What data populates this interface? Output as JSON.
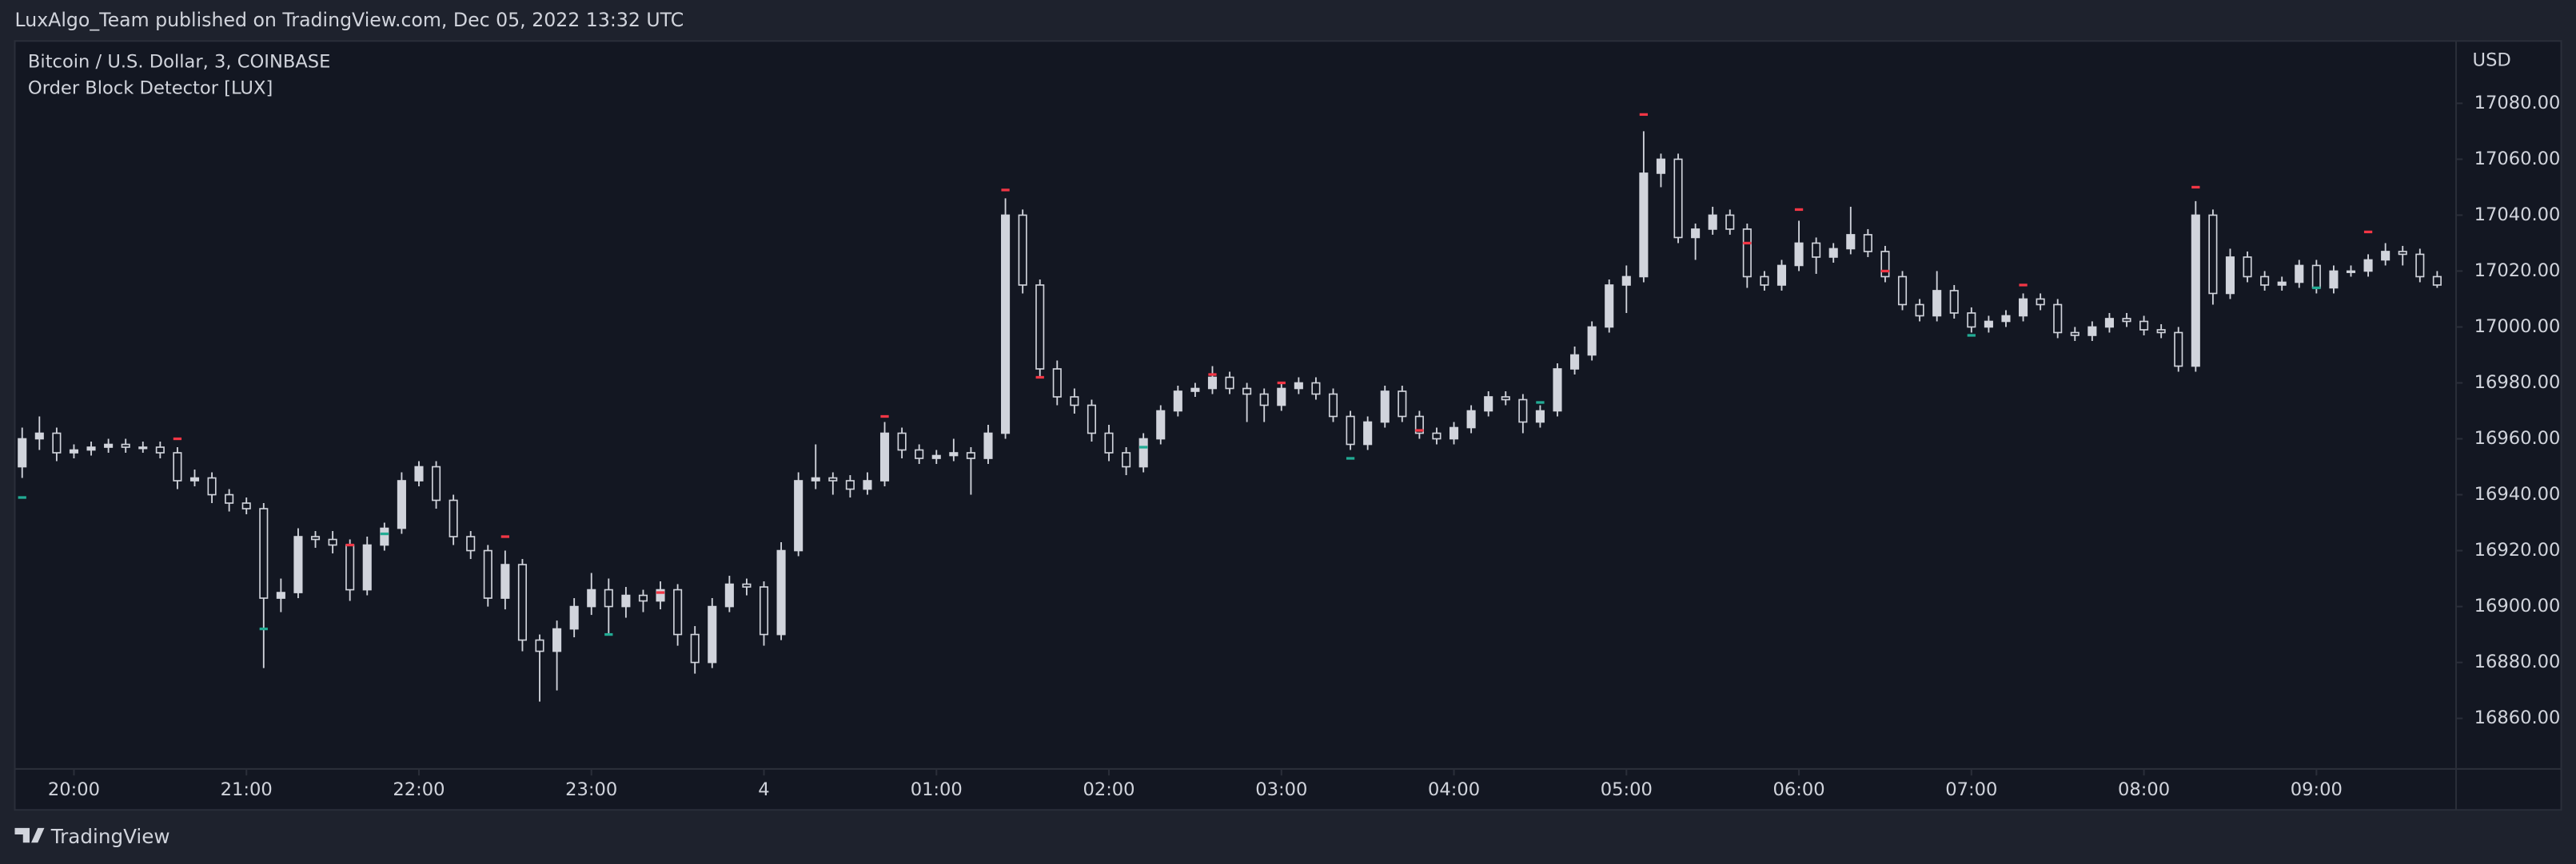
{
  "header": {
    "publisher": "LuxAlgo_Team published on TradingView.com, Dec 05, 2022 13:32 UTC"
  },
  "footer": {
    "brand": "TradingView"
  },
  "chart_data": {
    "type": "candlestick",
    "title": "Bitcoin / U.S. Dollar, 3, COINBASE",
    "subtitle": "Order Block Detector [LUX]",
    "y_axis_label": "USD",
    "up_color": "#d1d4dc",
    "down_color": "#131722",
    "grid": false,
    "xlim": [
      -0.333,
      141.095
    ],
    "ylim": [
      16842.5,
      17102.3
    ],
    "xticks": [
      {
        "value": 3,
        "label": "20:00"
      },
      {
        "value": 13,
        "label": "21:00"
      },
      {
        "value": 23,
        "label": "22:00"
      },
      {
        "value": 33,
        "label": "23:00"
      },
      {
        "value": 43,
        "label": "4"
      },
      {
        "value": 53,
        "label": "01:00"
      },
      {
        "value": 63,
        "label": "02:00"
      },
      {
        "value": 73,
        "label": "03:00"
      },
      {
        "value": 83,
        "label": "04:00"
      },
      {
        "value": 93,
        "label": "05:00"
      },
      {
        "value": 103,
        "label": "06:00"
      },
      {
        "value": 113,
        "label": "07:00"
      },
      {
        "value": 123,
        "label": "08:00"
      },
      {
        "value": 133,
        "label": "09:00"
      }
    ],
    "yticks": [
      {
        "value": 16860,
        "label": "16860.00"
      },
      {
        "value": 16880,
        "label": "16880.00"
      },
      {
        "value": 16900,
        "label": "16900.00"
      },
      {
        "value": 16920,
        "label": "16920.00"
      },
      {
        "value": 16940,
        "label": "16940.00"
      },
      {
        "value": 16960,
        "label": "16960.00"
      },
      {
        "value": 16980,
        "label": "16980.00"
      },
      {
        "value": 17000,
        "label": "17000.00"
      },
      {
        "value": 17020,
        "label": "17020.00"
      },
      {
        "value": 17040,
        "label": "17040.00"
      },
      {
        "value": 17060,
        "label": "17060.00"
      },
      {
        "value": 17080,
        "label": "17080.00"
      }
    ],
    "ohlc": [
      [
        16950,
        16964,
        16946,
        16960
      ],
      [
        16960,
        16968,
        16956,
        16962
      ],
      [
        16962,
        16964,
        16952,
        16955
      ],
      [
        16955,
        16958,
        16953,
        16956
      ],
      [
        16956,
        16959,
        16954,
        16957
      ],
      [
        16957,
        16960,
        16955,
        16958
      ],
      [
        16958,
        16960,
        16955,
        16957
      ],
      [
        16957,
        16959,
        16955,
        16957
      ],
      [
        16957,
        16959,
        16953,
        16955
      ],
      [
        16955,
        16957,
        16942,
        16945
      ],
      [
        16945,
        16949,
        16943,
        16946
      ],
      [
        16946,
        16948,
        16937,
        16940
      ],
      [
        16940,
        16942,
        16934,
        16937
      ],
      [
        16937,
        16939,
        16933,
        16935
      ],
      [
        16935,
        16937,
        16878,
        16903
      ],
      [
        16903,
        16910,
        16898,
        16905
      ],
      [
        16905,
        16928,
        16903,
        16925
      ],
      [
        16925,
        16927,
        16921,
        16924
      ],
      [
        16924,
        16927,
        16919,
        16922
      ],
      [
        16922,
        16924,
        16902,
        16906
      ],
      [
        16906,
        16925,
        16904,
        16922
      ],
      [
        16922,
        16930,
        16920,
        16928
      ],
      [
        16928,
        16948,
        16926,
        16945
      ],
      [
        16945,
        16952,
        16943,
        16950
      ],
      [
        16950,
        16952,
        16935,
        16938
      ],
      [
        16938,
        16940,
        16922,
        16925
      ],
      [
        16925,
        16927,
        16917,
        16920
      ],
      [
        16920,
        16922,
        16900,
        16903
      ],
      [
        16903,
        16920,
        16899,
        16915
      ],
      [
        16915,
        16917,
        16884,
        16888
      ],
      [
        16888,
        16890,
        16866,
        16884
      ],
      [
        16884,
        16895,
        16870,
        16892
      ],
      [
        16892,
        16903,
        16889,
        16900
      ],
      [
        16900,
        16912,
        16897,
        16906
      ],
      [
        16906,
        16910,
        16890,
        16900
      ],
      [
        16900,
        16907,
        16896,
        16904
      ],
      [
        16904,
        16906,
        16898,
        16902
      ],
      [
        16902,
        16909,
        16899,
        16906
      ],
      [
        16906,
        16908,
        16886,
        16890
      ],
      [
        16890,
        16893,
        16876,
        16880
      ],
      [
        16880,
        16903,
        16878,
        16900
      ],
      [
        16900,
        16911,
        16898,
        16908
      ],
      [
        16908,
        16910,
        16904,
        16907
      ],
      [
        16907,
        16909,
        16886,
        16890
      ],
      [
        16890,
        16923,
        16888,
        16920
      ],
      [
        16920,
        16948,
        16918,
        16945
      ],
      [
        16945,
        16958,
        16942,
        16946
      ],
      [
        16946,
        16948,
        16940,
        16945
      ],
      [
        16945,
        16947,
        16939,
        16942
      ],
      [
        16942,
        16948,
        16940,
        16945
      ],
      [
        16945,
        16966,
        16943,
        16962
      ],
      [
        16962,
        16964,
        16953,
        16956
      ],
      [
        16956,
        16958,
        16951,
        16953
      ],
      [
        16953,
        16956,
        16951,
        16954
      ],
      [
        16954,
        16960,
        16952,
        16955
      ],
      [
        16955,
        16957,
        16940,
        16953
      ],
      [
        16953,
        16965,
        16951,
        16962
      ],
      [
        16962,
        17046,
        16960,
        17040
      ],
      [
        17040,
        17042,
        17012,
        17015
      ],
      [
        17015,
        17017,
        16982,
        16985
      ],
      [
        16985,
        16988,
        16972,
        16975
      ],
      [
        16975,
        16978,
        16969,
        16972
      ],
      [
        16972,
        16974,
        16959,
        16962
      ],
      [
        16962,
        16965,
        16952,
        16955
      ],
      [
        16955,
        16957,
        16947,
        16950
      ],
      [
        16950,
        16962,
        16948,
        16960
      ],
      [
        16960,
        16972,
        16958,
        16970
      ],
      [
        16970,
        16979,
        16968,
        16977
      ],
      [
        16977,
        16980,
        16975,
        16978
      ],
      [
        16978,
        16986,
        16976,
        16982
      ],
      [
        16982,
        16984,
        16976,
        16978
      ],
      [
        16978,
        16980,
        16966,
        16976
      ],
      [
        16976,
        16978,
        16966,
        16972
      ],
      [
        16972,
        16980,
        16970,
        16978
      ],
      [
        16978,
        16982,
        16976,
        16980
      ],
      [
        16980,
        16982,
        16974,
        16976
      ],
      [
        16976,
        16978,
        16966,
        16968
      ],
      [
        16968,
        16970,
        16956,
        16958
      ],
      [
        16958,
        16968,
        16956,
        16966
      ],
      [
        16966,
        16979,
        16964,
        16977
      ],
      [
        16977,
        16979,
        16966,
        16968
      ],
      [
        16968,
        16970,
        16960,
        16962
      ],
      [
        16962,
        16964,
        16958,
        16960
      ],
      [
        16960,
        16966,
        16958,
        16964
      ],
      [
        16964,
        16972,
        16962,
        16970
      ],
      [
        16970,
        16977,
        16968,
        16975
      ],
      [
        16975,
        16977,
        16972,
        16974
      ],
      [
        16974,
        16976,
        16962,
        16966
      ],
      [
        16966,
        16972,
        16964,
        16970
      ],
      [
        16970,
        16987,
        16968,
        16985
      ],
      [
        16985,
        16993,
        16983,
        16990
      ],
      [
        16990,
        17002,
        16988,
        17000
      ],
      [
        17000,
        17017,
        16998,
        17015
      ],
      [
        17015,
        17022,
        17005,
        17018
      ],
      [
        17018,
        17070,
        17016,
        17055
      ],
      [
        17055,
        17062,
        17050,
        17060
      ],
      [
        17060,
        17062,
        17030,
        17032
      ],
      [
        17032,
        17037,
        17024,
        17035
      ],
      [
        17035,
        17043,
        17033,
        17040
      ],
      [
        17040,
        17042,
        17033,
        17035
      ],
      [
        17035,
        17037,
        17014,
        17018
      ],
      [
        17018,
        17020,
        17013,
        17015
      ],
      [
        17015,
        17024,
        17013,
        17022
      ],
      [
        17022,
        17038,
        17020,
        17030
      ],
      [
        17030,
        17032,
        17019,
        17025
      ],
      [
        17025,
        17030,
        17023,
        17028
      ],
      [
        17028,
        17043,
        17026,
        17033
      ],
      [
        17033,
        17035,
        17025,
        17027
      ],
      [
        17027,
        17029,
        17016,
        17018
      ],
      [
        17018,
        17020,
        17006,
        17008
      ],
      [
        17008,
        17010,
        17002,
        17004
      ],
      [
        17004,
        17020,
        17002,
        17013
      ],
      [
        17013,
        17015,
        17003,
        17005
      ],
      [
        17005,
        17007,
        16998,
        17000
      ],
      [
        17000,
        17004,
        16998,
        17002
      ],
      [
        17002,
        17006,
        17000,
        17004
      ],
      [
        17004,
        17012,
        17002,
        17010
      ],
      [
        17010,
        17012,
        17006,
        17008
      ],
      [
        17008,
        17010,
        16996,
        16998
      ],
      [
        16998,
        17000,
        16995,
        16997
      ],
      [
        16997,
        17002,
        16995,
        17000
      ],
      [
        17000,
        17005,
        16998,
        17003
      ],
      [
        17003,
        17005,
        17000,
        17002
      ],
      [
        17002,
        17004,
        16997,
        16999
      ],
      [
        16999,
        17001,
        16996,
        16998
      ],
      [
        16998,
        17000,
        16984,
        16986
      ],
      [
        16986,
        17045,
        16984,
        17040
      ],
      [
        17040,
        17042,
        17008,
        17012
      ],
      [
        17012,
        17028,
        17010,
        17025
      ],
      [
        17025,
        17027,
        17016,
        17018
      ],
      [
        17018,
        17020,
        17013,
        17015
      ],
      [
        17015,
        17018,
        17013,
        17016
      ],
      [
        17016,
        17024,
        17014,
        17022
      ],
      [
        17022,
        17024,
        17012,
        17014
      ],
      [
        17014,
        17022,
        17012,
        17020
      ],
      [
        17020,
        17022,
        17018,
        17020
      ],
      [
        17020,
        17026,
        17018,
        17024
      ],
      [
        17024,
        17030,
        17022,
        17027
      ],
      [
        17027,
        17029,
        17022,
        17026
      ],
      [
        17026,
        17028,
        17016,
        17018
      ],
      [
        17018,
        17020,
        17014,
        17015
      ]
    ],
    "bearish_markers": {
      "color": "#f23645",
      "x": [
        9,
        19,
        28,
        37,
        50,
        57,
        59,
        69,
        73,
        81,
        94,
        100,
        103,
        108,
        116,
        126,
        136
      ],
      "values": [
        16960,
        16922,
        16925,
        16905,
        16968,
        17049,
        16982,
        16983,
        16980,
        16963,
        17076,
        17030,
        17042,
        17020,
        17015,
        17050,
        17034
      ]
    },
    "bullish_markers": {
      "color": "#22ab94",
      "x": [
        0,
        14,
        21,
        34,
        65,
        77,
        88,
        113,
        133
      ],
      "values": [
        16939,
        16892,
        16926,
        16890,
        16957,
        16953,
        16973,
        16997,
        17014
      ]
    }
  }
}
